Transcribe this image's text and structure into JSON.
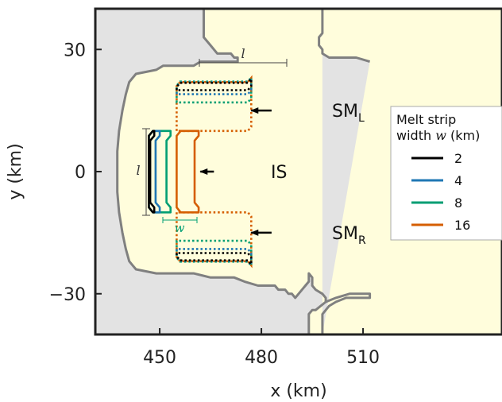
{
  "chart_data": {
    "type": "line",
    "xlabel": "x (km)",
    "ylabel": "y (km)",
    "xlim": [
      431,
      551
    ],
    "ylim": [
      -40,
      40
    ],
    "x_ticks": [
      450,
      480,
      510
    ],
    "y_ticks": [
      30,
      0,
      -30
    ],
    "grid": false,
    "colors": {
      "ocean": "#e3e3e3",
      "ice": "#fffddc",
      "grounded_ice": "#fffddc",
      "ice_front": "#808080",
      "axes": "#222222"
    },
    "ice_front_left": [
      [
        463,
        40
      ],
      [
        463,
        33
      ],
      [
        465,
        31
      ],
      [
        467,
        29
      ],
      [
        471,
        29
      ],
      [
        472,
        28
      ],
      [
        473,
        28
      ],
      [
        473,
        27
      ],
      [
        462,
        27
      ],
      [
        460,
        26
      ],
      [
        451,
        26
      ],
      [
        449,
        25
      ],
      [
        443,
        24
      ],
      [
        442,
        23
      ],
      [
        441,
        22
      ],
      [
        440,
        19
      ],
      [
        439,
        15
      ],
      [
        438,
        10
      ],
      [
        437.5,
        5
      ],
      [
        437.5,
        -5
      ],
      [
        438,
        -10
      ],
      [
        439,
        -15
      ],
      [
        440,
        -19
      ],
      [
        441,
        -22
      ],
      [
        442,
        -23
      ],
      [
        443,
        -24
      ],
      [
        449,
        -25
      ],
      [
        451,
        -25
      ],
      [
        460,
        -25
      ],
      [
        465,
        -26
      ],
      [
        472,
        -26
      ],
      [
        475,
        -27
      ],
      [
        479,
        -28
      ],
      [
        484,
        -28
      ],
      [
        485,
        -29
      ],
      [
        487,
        -29
      ],
      [
        488,
        -30
      ],
      [
        489,
        -30
      ],
      [
        490,
        -31
      ],
      [
        492,
        -29
      ],
      [
        493,
        -28
      ],
      [
        494,
        -27
      ],
      [
        494,
        -25
      ],
      [
        495,
        -26
      ],
      [
        495,
        -28
      ],
      [
        496,
        -29
      ],
      [
        498,
        -30
      ],
      [
        499,
        -31
      ],
      [
        499,
        -32
      ],
      [
        496,
        -34
      ],
      [
        495,
        -34
      ],
      [
        494,
        -35
      ],
      [
        494,
        -40
      ]
    ],
    "ice_front_right": [
      [
        498,
        40
      ],
      [
        498,
        34
      ],
      [
        497,
        33
      ],
      [
        497,
        31
      ],
      [
        498,
        30
      ],
      [
        499,
        29
      ],
      [
        501,
        28
      ],
      [
        502,
        28
      ],
      [
        508,
        27
      ],
      [
        512,
        27
      ],
      [
        512,
        -40
      ]
    ],
    "ice_front_right_jag": [
      [
        512,
        27
      ],
      [
        508,
        28
      ],
      [
        500,
        28
      ],
      [
        498,
        29
      ],
      [
        498,
        30
      ],
      [
        497,
        31
      ],
      [
        497,
        33
      ],
      [
        498,
        34
      ],
      [
        498,
        40
      ]
    ],
    "ice_front_bottom_jag": [
      [
        499,
        -32
      ],
      [
        502,
        -31
      ],
      [
        506,
        -30
      ],
      [
        512,
        -30
      ],
      [
        512,
        -31
      ],
      [
        505,
        -31
      ],
      [
        502,
        -32
      ],
      [
        500,
        -33
      ],
      [
        499,
        -34
      ],
      [
        498,
        -35
      ],
      [
        498,
        -40
      ]
    ],
    "legend": {
      "title_line1": "Melt strip",
      "title_line2_prefix": "width ",
      "title_line2_var": "w",
      "title_line2_suffix": " (km)",
      "entries": [
        "2",
        "4",
        "8",
        "16"
      ],
      "placement": "right"
    },
    "series": [
      {
        "name": "2",
        "color": "#000000",
        "width_km": 2
      },
      {
        "name": "4",
        "color": "#1f77b4",
        "width_km": 4
      },
      {
        "name": "8",
        "color": "#009e73",
        "width_km": 8
      },
      {
        "name": "16",
        "color": "#d55e00",
        "width_km": 16
      }
    ],
    "is_region": {
      "x_left": 446,
      "x_right": 455,
      "y_half": 10,
      "taper": 1.2
    },
    "sm_region": {
      "x_left": 455,
      "x_right": 477,
      "y_half_outer": 23,
      "y_inner": 10
    },
    "annotations": {
      "is_label": "IS",
      "sml_label": "SM",
      "sml_sub": "L",
      "smr_label": "SM",
      "smr_sub": "R",
      "l_label": "l",
      "w_label": "w"
    },
    "annotation_points": {
      "is_arrow": {
        "from": [
          466,
          0
        ],
        "to": [
          462,
          0
        ]
      },
      "sml_arrow": {
        "from": [
          483,
          15
        ],
        "to": [
          477,
          15
        ]
      },
      "smr_arrow": {
        "from": [
          483,
          -15
        ],
        "to": [
          477,
          -15
        ]
      }
    }
  }
}
